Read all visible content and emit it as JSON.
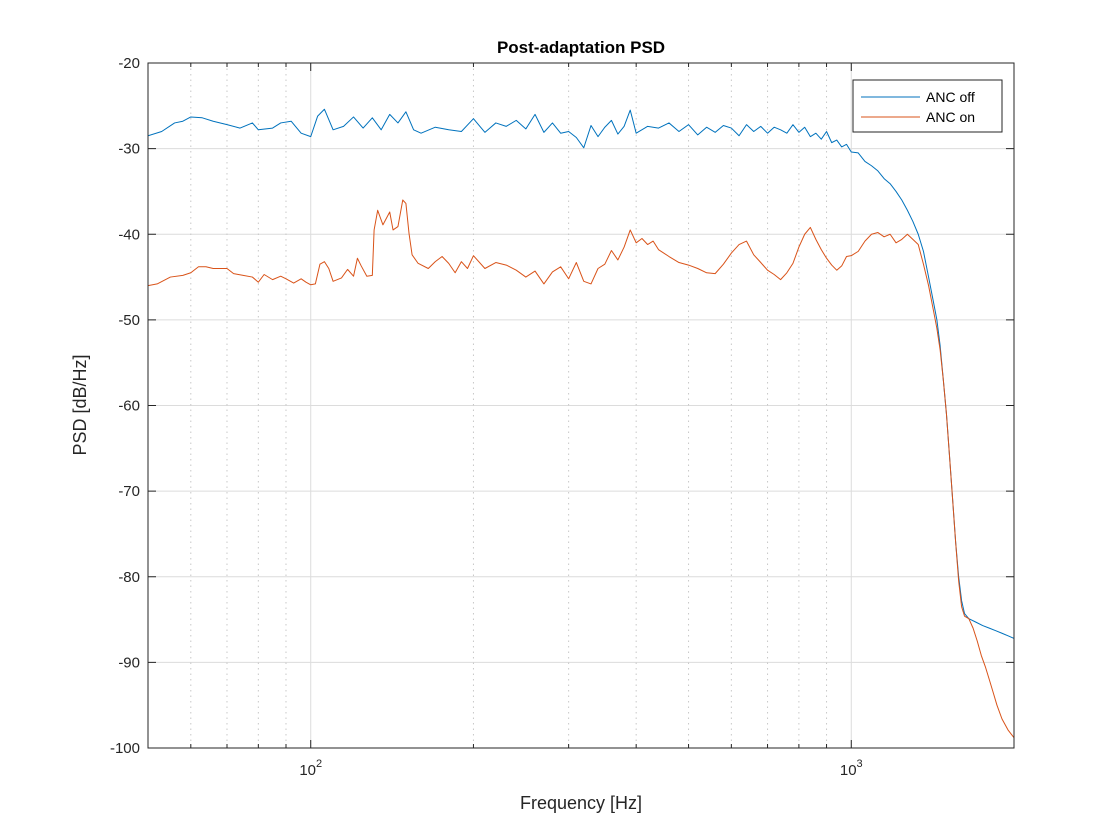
{
  "chart_data": {
    "type": "line",
    "title": "Post-adaptation PSD",
    "xlabel": "Frequency [Hz]",
    "ylabel": "PSD [dB/Hz]",
    "xscale": "log",
    "xlim": [
      50,
      2000
    ],
    "ylim": [
      -100,
      -20
    ],
    "yticks": [
      -100,
      -90,
      -80,
      -70,
      -60,
      -50,
      -40,
      -30,
      -20
    ],
    "xticks_major": [
      {
        "value": 100,
        "base": "10",
        "exp": "2"
      },
      {
        "value": 1000,
        "base": "10",
        "exp": "3"
      }
    ],
    "xticks_minor": [
      60,
      70,
      80,
      90,
      200,
      300,
      400,
      500,
      600,
      700,
      800,
      900
    ],
    "grid": true,
    "legend_position": "top-right",
    "series": [
      {
        "name": "ANC off",
        "color": "#0072BD",
        "points": [
          [
            50,
            -28.5
          ],
          [
            53,
            -28.0
          ],
          [
            56,
            -27.0
          ],
          [
            58,
            -26.8
          ],
          [
            60,
            -26.3
          ],
          [
            63,
            -26.4
          ],
          [
            66,
            -26.8
          ],
          [
            70,
            -27.2
          ],
          [
            74,
            -27.6
          ],
          [
            78,
            -27.0
          ],
          [
            80,
            -27.8
          ],
          [
            85,
            -27.6
          ],
          [
            88,
            -27.0
          ],
          [
            92,
            -26.8
          ],
          [
            96,
            -28.2
          ],
          [
            100,
            -28.6
          ],
          [
            103,
            -26.2
          ],
          [
            106,
            -25.4
          ],
          [
            110,
            -27.8
          ],
          [
            115,
            -27.4
          ],
          [
            120,
            -26.3
          ],
          [
            125,
            -27.6
          ],
          [
            130,
            -26.4
          ],
          [
            135,
            -27.8
          ],
          [
            140,
            -26.0
          ],
          [
            145,
            -27.0
          ],
          [
            150,
            -25.7
          ],
          [
            155,
            -27.8
          ],
          [
            160,
            -28.2
          ],
          [
            170,
            -27.5
          ],
          [
            180,
            -27.8
          ],
          [
            190,
            -28.0
          ],
          [
            200,
            -26.5
          ],
          [
            210,
            -28.1
          ],
          [
            220,
            -27.0
          ],
          [
            230,
            -27.4
          ],
          [
            240,
            -26.7
          ],
          [
            250,
            -27.7
          ],
          [
            260,
            -26.0
          ],
          [
            270,
            -28.1
          ],
          [
            280,
            -27.0
          ],
          [
            290,
            -28.2
          ],
          [
            300,
            -28.0
          ],
          [
            310,
            -28.7
          ],
          [
            320,
            -29.9
          ],
          [
            330,
            -27.3
          ],
          [
            340,
            -28.6
          ],
          [
            350,
            -27.5
          ],
          [
            360,
            -26.7
          ],
          [
            370,
            -28.3
          ],
          [
            380,
            -27.4
          ],
          [
            390,
            -25.5
          ],
          [
            400,
            -28.2
          ],
          [
            420,
            -27.4
          ],
          [
            440,
            -27.6
          ],
          [
            460,
            -27.0
          ],
          [
            480,
            -28.0
          ],
          [
            500,
            -27.2
          ],
          [
            520,
            -28.4
          ],
          [
            540,
            -27.5
          ],
          [
            560,
            -28.1
          ],
          [
            580,
            -27.3
          ],
          [
            600,
            -27.6
          ],
          [
            620,
            -28.5
          ],
          [
            640,
            -27.2
          ],
          [
            660,
            -28.0
          ],
          [
            680,
            -27.4
          ],
          [
            700,
            -28.2
          ],
          [
            720,
            -27.5
          ],
          [
            740,
            -27.8
          ],
          [
            760,
            -28.2
          ],
          [
            780,
            -27.2
          ],
          [
            800,
            -28.1
          ],
          [
            820,
            -27.5
          ],
          [
            840,
            -28.6
          ],
          [
            860,
            -28.2
          ],
          [
            880,
            -28.9
          ],
          [
            900,
            -28.0
          ],
          [
            920,
            -29.3
          ],
          [
            940,
            -29.0
          ],
          [
            960,
            -29.8
          ],
          [
            980,
            -29.5
          ],
          [
            1000,
            -30.4
          ],
          [
            1030,
            -30.5
          ],
          [
            1060,
            -31.5
          ],
          [
            1090,
            -32.0
          ],
          [
            1120,
            -32.6
          ],
          [
            1150,
            -33.5
          ],
          [
            1180,
            -34.1
          ],
          [
            1210,
            -35.0
          ],
          [
            1240,
            -36.0
          ],
          [
            1270,
            -37.2
          ],
          [
            1300,
            -38.5
          ],
          [
            1330,
            -40.0
          ],
          [
            1360,
            -42.0
          ],
          [
            1390,
            -45.0
          ],
          [
            1420,
            -48.0
          ],
          [
            1440,
            -50.0
          ],
          [
            1460,
            -53.0
          ],
          [
            1480,
            -57.0
          ],
          [
            1500,
            -61.0
          ],
          [
            1520,
            -66.0
          ],
          [
            1540,
            -71.0
          ],
          [
            1560,
            -76.0
          ],
          [
            1580,
            -80.0
          ],
          [
            1600,
            -82.8
          ],
          [
            1620,
            -84.3
          ],
          [
            1650,
            -84.9
          ],
          [
            1700,
            -85.3
          ],
          [
            1750,
            -85.7
          ],
          [
            1800,
            -86.0
          ],
          [
            1850,
            -86.3
          ],
          [
            1900,
            -86.6
          ],
          [
            1950,
            -86.9
          ],
          [
            2000,
            -87.2
          ]
        ]
      },
      {
        "name": "ANC on",
        "color": "#D95319",
        "points": [
          [
            50,
            -46.0
          ],
          [
            52,
            -45.8
          ],
          [
            55,
            -45.0
          ],
          [
            58,
            -44.8
          ],
          [
            60,
            -44.5
          ],
          [
            62,
            -43.8
          ],
          [
            64,
            -43.8
          ],
          [
            66,
            -44.0
          ],
          [
            70,
            -44.0
          ],
          [
            72,
            -44.6
          ],
          [
            75,
            -44.8
          ],
          [
            78,
            -45.0
          ],
          [
            80,
            -45.6
          ],
          [
            82,
            -44.7
          ],
          [
            85,
            -45.3
          ],
          [
            88,
            -44.9
          ],
          [
            90,
            -45.2
          ],
          [
            93,
            -45.7
          ],
          [
            96,
            -45.2
          ],
          [
            98,
            -45.6
          ],
          [
            100,
            -45.9
          ],
          [
            102,
            -45.8
          ],
          [
            104,
            -43.5
          ],
          [
            106,
            -43.2
          ],
          [
            108,
            -44.0
          ],
          [
            110,
            -45.5
          ],
          [
            114,
            -45.1
          ],
          [
            117,
            -44.1
          ],
          [
            120,
            -44.9
          ],
          [
            122,
            -42.8
          ],
          [
            124,
            -43.7
          ],
          [
            127,
            -44.9
          ],
          [
            130,
            -44.8
          ],
          [
            131,
            -39.5
          ],
          [
            133,
            -37.2
          ],
          [
            136,
            -38.9
          ],
          [
            140,
            -37.4
          ],
          [
            142,
            -39.5
          ],
          [
            145,
            -39.1
          ],
          [
            148,
            -36.0
          ],
          [
            150,
            -36.4
          ],
          [
            152,
            -39.9
          ],
          [
            154,
            -42.4
          ],
          [
            158,
            -43.4
          ],
          [
            165,
            -44.0
          ],
          [
            170,
            -43.2
          ],
          [
            175,
            -42.6
          ],
          [
            180,
            -43.4
          ],
          [
            185,
            -44.5
          ],
          [
            190,
            -43.2
          ],
          [
            195,
            -44.0
          ],
          [
            200,
            -42.5
          ],
          [
            210,
            -44.0
          ],
          [
            220,
            -43.3
          ],
          [
            230,
            -43.6
          ],
          [
            240,
            -44.2
          ],
          [
            250,
            -45.0
          ],
          [
            260,
            -44.3
          ],
          [
            270,
            -45.8
          ],
          [
            280,
            -44.4
          ],
          [
            290,
            -43.8
          ],
          [
            300,
            -45.2
          ],
          [
            310,
            -43.3
          ],
          [
            320,
            -45.5
          ],
          [
            330,
            -45.8
          ],
          [
            340,
            -44.0
          ],
          [
            350,
            -43.5
          ],
          [
            360,
            -41.9
          ],
          [
            370,
            -43.0
          ],
          [
            380,
            -41.5
          ],
          [
            390,
            -39.5
          ],
          [
            400,
            -41.0
          ],
          [
            410,
            -40.5
          ],
          [
            420,
            -41.2
          ],
          [
            430,
            -40.8
          ],
          [
            440,
            -41.8
          ],
          [
            460,
            -42.6
          ],
          [
            480,
            -43.3
          ],
          [
            500,
            -43.6
          ],
          [
            520,
            -44.0
          ],
          [
            540,
            -44.5
          ],
          [
            560,
            -44.6
          ],
          [
            580,
            -43.5
          ],
          [
            600,
            -42.2
          ],
          [
            620,
            -41.2
          ],
          [
            640,
            -40.8
          ],
          [
            660,
            -42.4
          ],
          [
            680,
            -43.3
          ],
          [
            700,
            -44.2
          ],
          [
            720,
            -44.7
          ],
          [
            740,
            -45.3
          ],
          [
            760,
            -44.5
          ],
          [
            780,
            -43.4
          ],
          [
            800,
            -41.5
          ],
          [
            820,
            -40.0
          ],
          [
            840,
            -39.2
          ],
          [
            860,
            -40.6
          ],
          [
            880,
            -41.8
          ],
          [
            900,
            -42.8
          ],
          [
            920,
            -43.6
          ],
          [
            940,
            -44.2
          ],
          [
            960,
            -43.7
          ],
          [
            980,
            -42.6
          ],
          [
            1000,
            -42.5
          ],
          [
            1030,
            -42.0
          ],
          [
            1060,
            -40.8
          ],
          [
            1090,
            -40.0
          ],
          [
            1120,
            -39.8
          ],
          [
            1150,
            -40.3
          ],
          [
            1180,
            -40.0
          ],
          [
            1210,
            -41.0
          ],
          [
            1240,
            -40.6
          ],
          [
            1270,
            -40.0
          ],
          [
            1300,
            -40.6
          ],
          [
            1330,
            -41.2
          ],
          [
            1360,
            -43.5
          ],
          [
            1390,
            -46.0
          ],
          [
            1420,
            -49.0
          ],
          [
            1440,
            -51.0
          ],
          [
            1460,
            -53.5
          ],
          [
            1480,
            -57.0
          ],
          [
            1500,
            -61.0
          ],
          [
            1520,
            -66.0
          ],
          [
            1540,
            -71.0
          ],
          [
            1560,
            -76.0
          ],
          [
            1580,
            -80.5
          ],
          [
            1600,
            -83.5
          ],
          [
            1620,
            -84.6
          ],
          [
            1650,
            -84.9
          ],
          [
            1680,
            -86.0
          ],
          [
            1710,
            -87.5
          ],
          [
            1740,
            -89.2
          ],
          [
            1770,
            -90.5
          ],
          [
            1800,
            -92.0
          ],
          [
            1830,
            -93.5
          ],
          [
            1860,
            -95.0
          ],
          [
            1900,
            -96.6
          ],
          [
            1950,
            -97.9
          ],
          [
            2000,
            -98.8
          ]
        ]
      }
    ]
  }
}
